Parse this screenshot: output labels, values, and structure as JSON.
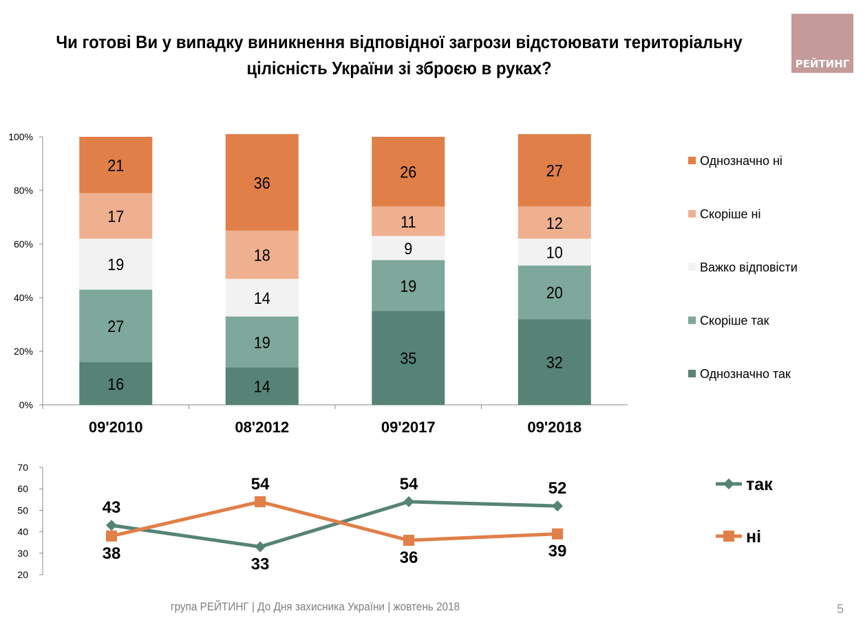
{
  "title": "Чи готові Ви у випадку виникнення відповідної загрози відстоювати територіальну цілісність України зі зброєю в руках?",
  "logo_text": "РЕЙТИНГ",
  "footer": "група РЕЙТИНГ  |  До Дня захисника України |  жовтень  2018",
  "page_number": "5",
  "chart_data": [
    {
      "type": "bar",
      "stacked": true,
      "categories": [
        "09'2010",
        "08'2012",
        "09'2017",
        "09'2018"
      ],
      "ylim": [
        0,
        100
      ],
      "yticks": [
        "0%",
        "20%",
        "40%",
        "60%",
        "80%",
        "100%"
      ],
      "legend_position": "right",
      "series": [
        {
          "name": "Однозначно так",
          "color": "#568376",
          "values": [
            16,
            14,
            35,
            32
          ]
        },
        {
          "name": "Скоріше так",
          "color": "#7ea89b",
          "values": [
            27,
            19,
            19,
            20
          ]
        },
        {
          "name": "Важко відповісти",
          "color": "#f2f2f2",
          "values": [
            19,
            14,
            9,
            10
          ]
        },
        {
          "name": "Скоріше ні",
          "color": "#efb08f",
          "values": [
            17,
            18,
            11,
            12
          ]
        },
        {
          "name": "Однозначно ні",
          "color": "#e07f48",
          "values": [
            21,
            36,
            26,
            27
          ]
        }
      ]
    },
    {
      "type": "line",
      "categories": [
        "09'2010",
        "08'2012",
        "09'2017",
        "09'2018"
      ],
      "ylim": [
        20,
        70
      ],
      "yticks": [
        "20",
        "30",
        "40",
        "50",
        "60",
        "70"
      ],
      "legend_position": "right",
      "series": [
        {
          "name": "так",
          "color": "#568376",
          "marker": "diamond",
          "values": [
            43,
            33,
            54,
            52
          ]
        },
        {
          "name": "ні",
          "color": "#e07f48",
          "marker": "square",
          "values": [
            38,
            54,
            36,
            39
          ]
        }
      ]
    }
  ]
}
